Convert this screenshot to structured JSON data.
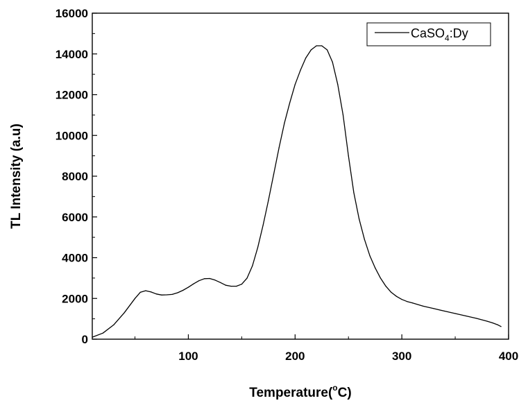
{
  "chart_data": {
    "type": "line",
    "xlabel": "Temperature(",
    "xlabel_sup": "o",
    "xlabel_end": "C)",
    "ylabel": "TL Intensity (a.u)",
    "xlim": [
      10,
      400
    ],
    "ylim": [
      0,
      16000
    ],
    "x_ticks": [
      100,
      200,
      300,
      400
    ],
    "y_ticks": [
      0,
      2000,
      4000,
      6000,
      8000,
      10000,
      12000,
      14000,
      16000
    ],
    "grid": false,
    "legend_position": "top-right",
    "legend": {
      "prefix": "CaSO",
      "sub": "4",
      "suffix": ":Dy"
    },
    "series": [
      {
        "name": "CaSO4:Dy",
        "color": "#000000",
        "x": [
          10,
          20,
          30,
          40,
          50,
          55,
          60,
          65,
          70,
          75,
          80,
          85,
          90,
          95,
          100,
          105,
          110,
          115,
          120,
          125,
          130,
          135,
          140,
          145,
          150,
          155,
          160,
          165,
          170,
          175,
          180,
          185,
          190,
          195,
          200,
          205,
          210,
          215,
          220,
          225,
          230,
          235,
          240,
          245,
          250,
          255,
          260,
          265,
          270,
          275,
          280,
          285,
          290,
          295,
          300,
          305,
          310,
          320,
          330,
          340,
          350,
          360,
          370,
          380,
          385,
          390,
          393
        ],
        "y": [
          100,
          300,
          700,
          1300,
          2000,
          2300,
          2380,
          2320,
          2220,
          2170,
          2180,
          2200,
          2280,
          2400,
          2550,
          2720,
          2870,
          2970,
          2980,
          2900,
          2780,
          2650,
          2600,
          2600,
          2700,
          3000,
          3600,
          4500,
          5600,
          6800,
          8100,
          9400,
          10600,
          11600,
          12500,
          13200,
          13800,
          14200,
          14400,
          14400,
          14200,
          13600,
          12500,
          11000,
          9000,
          7200,
          5900,
          4900,
          4100,
          3500,
          3000,
          2600,
          2300,
          2100,
          1950,
          1850,
          1780,
          1620,
          1500,
          1380,
          1260,
          1140,
          1020,
          880,
          800,
          700,
          620
        ]
      }
    ]
  }
}
